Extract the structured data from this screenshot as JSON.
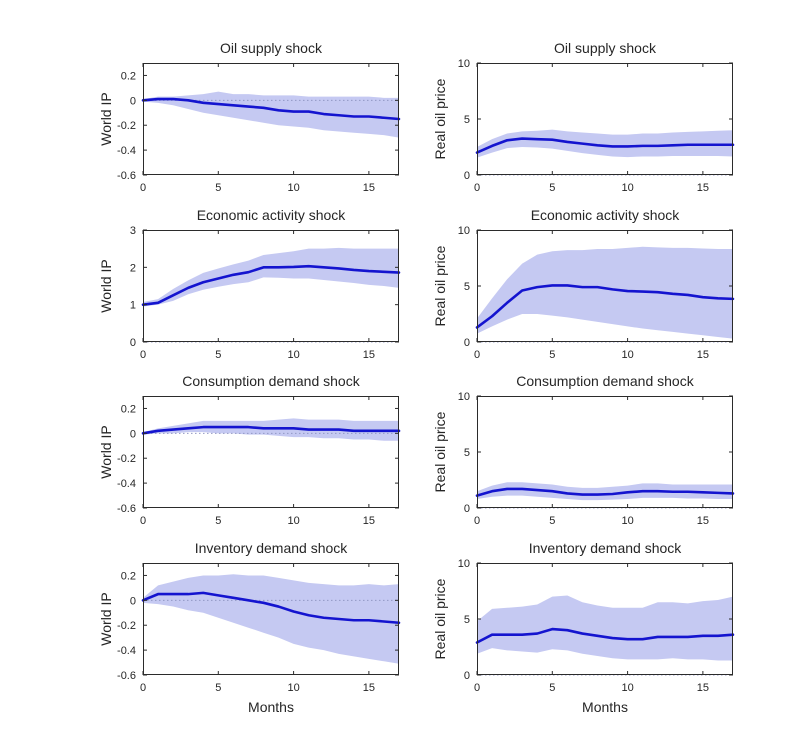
{
  "figure": {
    "background": "#ffffff",
    "x_axis_label": "Months"
  },
  "palette": {
    "band": "#c5c9f2",
    "line": "#1414cf",
    "zero_line": "#9298c4",
    "axis": "#2b2b2b",
    "text": "#262626"
  },
  "chart_data": [
    {
      "type": "line",
      "title": "Oil supply shock",
      "ylabel": "World IP",
      "xlabel": "",
      "x": [
        0,
        1,
        2,
        3,
        4,
        5,
        6,
        7,
        8,
        9,
        10,
        11,
        12,
        13,
        14,
        15,
        16,
        17
      ],
      "median": [
        0,
        0.01,
        0.01,
        0,
        -0.02,
        -0.03,
        -0.04,
        -0.05,
        -0.06,
        -0.08,
        -0.09,
        -0.09,
        -0.11,
        -0.12,
        -0.13,
        -0.13,
        -0.14,
        -0.15
      ],
      "band_upper": [
        0.01,
        0.03,
        0.03,
        0.04,
        0.05,
        0.07,
        0.05,
        0.05,
        0.04,
        0.04,
        0.04,
        0.03,
        0.03,
        0.03,
        0.03,
        0.03,
        0.02,
        0.02
      ],
      "band_lower": [
        -0.01,
        -0.02,
        -0.04,
        -0.07,
        -0.1,
        -0.12,
        -0.14,
        -0.16,
        -0.18,
        -0.2,
        -0.21,
        -0.22,
        -0.24,
        -0.25,
        -0.26,
        -0.27,
        -0.28,
        -0.3
      ],
      "xlim": [
        0,
        17
      ],
      "ylim": [
        -0.6,
        0.3
      ],
      "xticks": [
        0,
        5,
        10,
        15
      ],
      "xtick_labels": [
        "0",
        "5",
        "10",
        "15"
      ],
      "yticks": [
        -0.6,
        -0.4,
        -0.2,
        0,
        0.2
      ],
      "ytick_labels": [
        "-0.6",
        "-0.4",
        "-0.2",
        "0",
        "0.2"
      ],
      "zero_line": true,
      "grid": false,
      "legend": false
    },
    {
      "type": "line",
      "title": "Oil supply shock",
      "ylabel": "Real oil price",
      "xlabel": "",
      "x": [
        0,
        1,
        2,
        3,
        4,
        5,
        6,
        7,
        8,
        9,
        10,
        11,
        12,
        13,
        14,
        15,
        16,
        17
      ],
      "median": [
        2.0,
        2.6,
        3.1,
        3.25,
        3.2,
        3.15,
        2.95,
        2.8,
        2.65,
        2.55,
        2.55,
        2.6,
        2.6,
        2.65,
        2.7,
        2.7,
        2.7,
        2.7
      ],
      "band_upper": [
        2.5,
        3.2,
        3.7,
        3.9,
        3.95,
        4.05,
        3.9,
        3.8,
        3.7,
        3.6,
        3.6,
        3.7,
        3.7,
        3.8,
        3.85,
        3.9,
        3.95,
        4.0
      ],
      "band_lower": [
        1.55,
        2.0,
        2.4,
        2.5,
        2.45,
        2.35,
        2.15,
        1.95,
        1.8,
        1.65,
        1.6,
        1.65,
        1.65,
        1.7,
        1.7,
        1.7,
        1.7,
        1.65
      ],
      "xlim": [
        0,
        17
      ],
      "ylim": [
        0,
        10
      ],
      "xticks": [
        0,
        5,
        10,
        15
      ],
      "xtick_labels": [
        "0",
        "5",
        "10",
        "15"
      ],
      "yticks": [
        0,
        5,
        10
      ],
      "ytick_labels": [
        "0",
        "5",
        "10"
      ],
      "zero_line": true,
      "grid": false,
      "legend": false
    },
    {
      "type": "line",
      "title": "Economic activity shock",
      "ylabel": "World IP",
      "xlabel": "",
      "x": [
        0,
        1,
        2,
        3,
        4,
        5,
        6,
        7,
        8,
        9,
        10,
        11,
        12,
        13,
        14,
        15,
        16,
        17
      ],
      "median": [
        1.0,
        1.05,
        1.25,
        1.45,
        1.6,
        1.7,
        1.8,
        1.87,
        2.0,
        2.0,
        2.01,
        2.03,
        2.0,
        1.97,
        1.93,
        1.9,
        1.88,
        1.86
      ],
      "band_upper": [
        1.07,
        1.15,
        1.42,
        1.65,
        1.85,
        1.97,
        2.08,
        2.18,
        2.33,
        2.38,
        2.43,
        2.5,
        2.5,
        2.52,
        2.5,
        2.5,
        2.5,
        2.5
      ],
      "band_lower": [
        0.95,
        1.0,
        1.1,
        1.28,
        1.4,
        1.48,
        1.55,
        1.6,
        1.73,
        1.72,
        1.7,
        1.7,
        1.66,
        1.62,
        1.58,
        1.53,
        1.5,
        1.45
      ],
      "xlim": [
        0,
        17
      ],
      "ylim": [
        0,
        3
      ],
      "xticks": [
        0,
        5,
        10,
        15
      ],
      "xtick_labels": [
        "0",
        "5",
        "10",
        "15"
      ],
      "yticks": [
        0,
        1,
        2,
        3
      ],
      "ytick_labels": [
        "0",
        "1",
        "2",
        "3"
      ],
      "zero_line": true,
      "grid": false,
      "legend": false
    },
    {
      "type": "line",
      "title": "Economic activity shock",
      "ylabel": "Real oil price",
      "xlabel": "",
      "x": [
        0,
        1,
        2,
        3,
        4,
        5,
        6,
        7,
        8,
        9,
        10,
        11,
        12,
        13,
        14,
        15,
        16,
        17
      ],
      "median": [
        1.3,
        2.3,
        3.5,
        4.6,
        4.9,
        5.05,
        5.05,
        4.9,
        4.9,
        4.7,
        4.55,
        4.5,
        4.45,
        4.3,
        4.2,
        4.0,
        3.9,
        3.85
      ],
      "band_upper": [
        2.1,
        3.9,
        5.6,
        7.0,
        7.8,
        8.1,
        8.2,
        8.2,
        8.3,
        8.3,
        8.4,
        8.5,
        8.45,
        8.4,
        8.4,
        8.35,
        8.3,
        8.3
      ],
      "band_lower": [
        0.75,
        1.4,
        2.0,
        2.5,
        2.5,
        2.35,
        2.2,
        2.0,
        1.8,
        1.6,
        1.4,
        1.2,
        1.05,
        0.9,
        0.75,
        0.6,
        0.45,
        0.3
      ],
      "xlim": [
        0,
        17
      ],
      "ylim": [
        0,
        10
      ],
      "xticks": [
        0,
        5,
        10,
        15
      ],
      "xtick_labels": [
        "0",
        "5",
        "10",
        "15"
      ],
      "yticks": [
        0,
        5,
        10
      ],
      "ytick_labels": [
        "0",
        "5",
        "10"
      ],
      "zero_line": true,
      "grid": false,
      "legend": false
    },
    {
      "type": "line",
      "title": "Consumption demand shock",
      "ylabel": "World IP",
      "xlabel": "",
      "x": [
        0,
        1,
        2,
        3,
        4,
        5,
        6,
        7,
        8,
        9,
        10,
        11,
        12,
        13,
        14,
        15,
        16,
        17
      ],
      "median": [
        0,
        0.02,
        0.03,
        0.04,
        0.05,
        0.05,
        0.05,
        0.05,
        0.04,
        0.04,
        0.04,
        0.03,
        0.03,
        0.03,
        0.02,
        0.02,
        0.02,
        0.02
      ],
      "band_upper": [
        0.01,
        0.04,
        0.06,
        0.08,
        0.1,
        0.1,
        0.1,
        0.1,
        0.1,
        0.11,
        0.12,
        0.11,
        0.11,
        0.11,
        0.1,
        0.1,
        0.1,
        0.1
      ],
      "band_lower": [
        -0.01,
        0,
        0,
        0.01,
        0.01,
        0,
        0,
        -0.01,
        -0.01,
        -0.02,
        -0.03,
        -0.03,
        -0.04,
        -0.04,
        -0.05,
        -0.05,
        -0.06,
        -0.06
      ],
      "xlim": [
        0,
        17
      ],
      "ylim": [
        -0.6,
        0.3
      ],
      "xticks": [
        0,
        5,
        10,
        15
      ],
      "xtick_labels": [
        "0",
        "5",
        "10",
        "15"
      ],
      "yticks": [
        -0.6,
        -0.4,
        -0.2,
        0,
        0.2
      ],
      "ytick_labels": [
        "-0.6",
        "-0.4",
        "-0.2",
        "0",
        "0.2"
      ],
      "zero_line": true,
      "grid": false,
      "legend": false
    },
    {
      "type": "line",
      "title": "Consumption demand shock",
      "ylabel": "Real oil price",
      "xlabel": "",
      "x": [
        0,
        1,
        2,
        3,
        4,
        5,
        6,
        7,
        8,
        9,
        10,
        11,
        12,
        13,
        14,
        15,
        16,
        17
      ],
      "median": [
        1.1,
        1.5,
        1.7,
        1.7,
        1.6,
        1.5,
        1.3,
        1.2,
        1.2,
        1.25,
        1.4,
        1.5,
        1.5,
        1.45,
        1.45,
        1.4,
        1.35,
        1.3
      ],
      "band_upper": [
        1.5,
        2.0,
        2.3,
        2.3,
        2.2,
        2.1,
        1.9,
        1.8,
        1.8,
        1.9,
        2.0,
        2.2,
        2.2,
        2.1,
        2.1,
        2.1,
        2.1,
        2.1
      ],
      "band_lower": [
        0.8,
        1.0,
        1.1,
        1.1,
        1.0,
        0.9,
        0.8,
        0.7,
        0.7,
        0.75,
        0.8,
        0.9,
        0.9,
        0.9,
        0.85,
        0.85,
        0.8,
        0.8
      ],
      "xlim": [
        0,
        17
      ],
      "ylim": [
        0,
        10
      ],
      "xticks": [
        0,
        5,
        10,
        15
      ],
      "xtick_labels": [
        "0",
        "5",
        "10",
        "15"
      ],
      "yticks": [
        0,
        5,
        10
      ],
      "ytick_labels": [
        "0",
        "5",
        "10"
      ],
      "zero_line": true,
      "grid": false,
      "legend": false
    },
    {
      "type": "line",
      "title": "Inventory demand shock",
      "ylabel": "World IP",
      "xlabel": "Months",
      "x": [
        0,
        1,
        2,
        3,
        4,
        5,
        6,
        7,
        8,
        9,
        10,
        11,
        12,
        13,
        14,
        15,
        16,
        17
      ],
      "median": [
        0,
        0.05,
        0.05,
        0.05,
        0.06,
        0.04,
        0.02,
        0,
        -0.02,
        -0.05,
        -0.09,
        -0.12,
        -0.14,
        -0.15,
        -0.16,
        -0.16,
        -0.17,
        -0.18
      ],
      "band_upper": [
        0.02,
        0.12,
        0.15,
        0.18,
        0.2,
        0.2,
        0.21,
        0.2,
        0.2,
        0.18,
        0.16,
        0.14,
        0.13,
        0.12,
        0.12,
        0.13,
        0.12,
        0.13
      ],
      "band_lower": [
        -0.02,
        -0.03,
        -0.05,
        -0.08,
        -0.1,
        -0.14,
        -0.18,
        -0.22,
        -0.26,
        -0.3,
        -0.35,
        -0.38,
        -0.4,
        -0.43,
        -0.45,
        -0.47,
        -0.49,
        -0.51
      ],
      "xlim": [
        0,
        17
      ],
      "ylim": [
        -0.6,
        0.3
      ],
      "xticks": [
        0,
        5,
        10,
        15
      ],
      "xtick_labels": [
        "0",
        "5",
        "10",
        "15"
      ],
      "yticks": [
        -0.6,
        -0.4,
        -0.2,
        0,
        0.2
      ],
      "ytick_labels": [
        "-0.6",
        "-0.4",
        "-0.2",
        "0",
        "0.2"
      ],
      "zero_line": true,
      "grid": false,
      "legend": false
    },
    {
      "type": "line",
      "title": "Inventory demand shock",
      "ylabel": "Real oil price",
      "xlabel": "Months",
      "x": [
        0,
        1,
        2,
        3,
        4,
        5,
        6,
        7,
        8,
        9,
        10,
        11,
        12,
        13,
        14,
        15,
        16,
        17
      ],
      "median": [
        2.9,
        3.6,
        3.6,
        3.6,
        3.7,
        4.1,
        4.0,
        3.7,
        3.5,
        3.3,
        3.2,
        3.2,
        3.4,
        3.4,
        3.4,
        3.5,
        3.5,
        3.6
      ],
      "band_upper": [
        4.8,
        5.9,
        6.0,
        6.1,
        6.3,
        7.0,
        7.1,
        6.5,
        6.2,
        6.0,
        6.0,
        6.0,
        6.5,
        6.5,
        6.4,
        6.6,
        6.7,
        7.0
      ],
      "band_lower": [
        1.9,
        2.4,
        2.2,
        2.1,
        2.0,
        2.3,
        2.2,
        1.9,
        1.7,
        1.5,
        1.4,
        1.4,
        1.4,
        1.5,
        1.4,
        1.4,
        1.3,
        1.3
      ],
      "xlim": [
        0,
        17
      ],
      "ylim": [
        0,
        10
      ],
      "xticks": [
        0,
        5,
        10,
        15
      ],
      "xtick_labels": [
        "0",
        "5",
        "10",
        "15"
      ],
      "yticks": [
        0,
        5,
        10
      ],
      "ytick_labels": [
        "0",
        "5",
        "10"
      ],
      "zero_line": true,
      "grid": false,
      "legend": false
    }
  ]
}
